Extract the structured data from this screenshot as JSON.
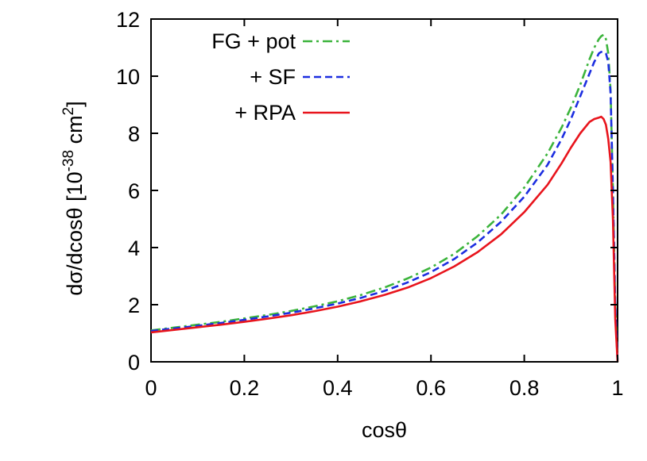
{
  "chart_data": {
    "type": "line",
    "title": "",
    "xlabel": "cosθ",
    "ylabel_parts": {
      "main": "dσ/dcosθ [10",
      "exp1": "-38",
      "mid": " cm",
      "exp2": "2",
      "end": "]"
    },
    "xlim": [
      0,
      1
    ],
    "ylim": [
      0,
      12
    ],
    "xticks": [
      "0",
      "0.2",
      "0.4",
      "0.6",
      "0.8",
      "1"
    ],
    "yticks": [
      "0",
      "2",
      "4",
      "6",
      "8",
      "10",
      "12"
    ],
    "grid": false,
    "legend_position": "top-left",
    "series": [
      {
        "name": "FG + pot",
        "color": "#3cb43c",
        "dash": "dashdot",
        "x": [
          0,
          0.05,
          0.1,
          0.15,
          0.2,
          0.25,
          0.3,
          0.35,
          0.4,
          0.45,
          0.5,
          0.55,
          0.6,
          0.65,
          0.7,
          0.75,
          0.8,
          0.85,
          0.88,
          0.9,
          0.92,
          0.94,
          0.95,
          0.96,
          0.965,
          0.97,
          0.975,
          0.98,
          0.985,
          0.99,
          0.995,
          1.0
        ],
        "y": [
          1.1,
          1.2,
          1.3,
          1.4,
          1.52,
          1.64,
          1.78,
          1.94,
          2.12,
          2.34,
          2.6,
          2.92,
          3.3,
          3.78,
          4.4,
          5.15,
          6.1,
          7.3,
          8.2,
          8.9,
          9.7,
          10.6,
          11.0,
          11.3,
          11.4,
          11.45,
          11.3,
          10.8,
          9.5,
          6.0,
          2.0,
          0.0
        ]
      },
      {
        "name": "+ SF",
        "color": "#1c2ee0",
        "dash": "dashed",
        "x": [
          0,
          0.05,
          0.1,
          0.15,
          0.2,
          0.25,
          0.3,
          0.35,
          0.4,
          0.45,
          0.5,
          0.55,
          0.6,
          0.65,
          0.7,
          0.75,
          0.8,
          0.85,
          0.88,
          0.9,
          0.92,
          0.94,
          0.95,
          0.96,
          0.965,
          0.97,
          0.975,
          0.98,
          0.985,
          0.99,
          0.995,
          1.0
        ],
        "y": [
          1.08,
          1.17,
          1.26,
          1.36,
          1.47,
          1.59,
          1.72,
          1.87,
          2.04,
          2.24,
          2.48,
          2.78,
          3.14,
          3.6,
          4.18,
          4.9,
          5.78,
          6.9,
          7.8,
          8.5,
          9.3,
          10.1,
          10.5,
          10.8,
          10.85,
          10.85,
          10.8,
          10.5,
          9.4,
          6.0,
          2.0,
          0.0
        ]
      },
      {
        "name": "+ RPA",
        "color": "#e8141c",
        "dash": "solid",
        "x": [
          0,
          0.05,
          0.1,
          0.15,
          0.2,
          0.25,
          0.3,
          0.35,
          0.4,
          0.45,
          0.5,
          0.55,
          0.6,
          0.65,
          0.7,
          0.75,
          0.8,
          0.85,
          0.88,
          0.9,
          0.92,
          0.94,
          0.95,
          0.96,
          0.965,
          0.97,
          0.975,
          0.98,
          0.985,
          0.99,
          0.995,
          1.0
        ],
        "y": [
          1.03,
          1.12,
          1.21,
          1.3,
          1.4,
          1.51,
          1.63,
          1.77,
          1.93,
          2.12,
          2.34,
          2.6,
          2.93,
          3.34,
          3.84,
          4.46,
          5.24,
          6.2,
          6.95,
          7.5,
          8.0,
          8.4,
          8.5,
          8.55,
          8.58,
          8.5,
          8.3,
          7.8,
          7.0,
          5.0,
          1.5,
          0.0
        ]
      }
    ]
  }
}
